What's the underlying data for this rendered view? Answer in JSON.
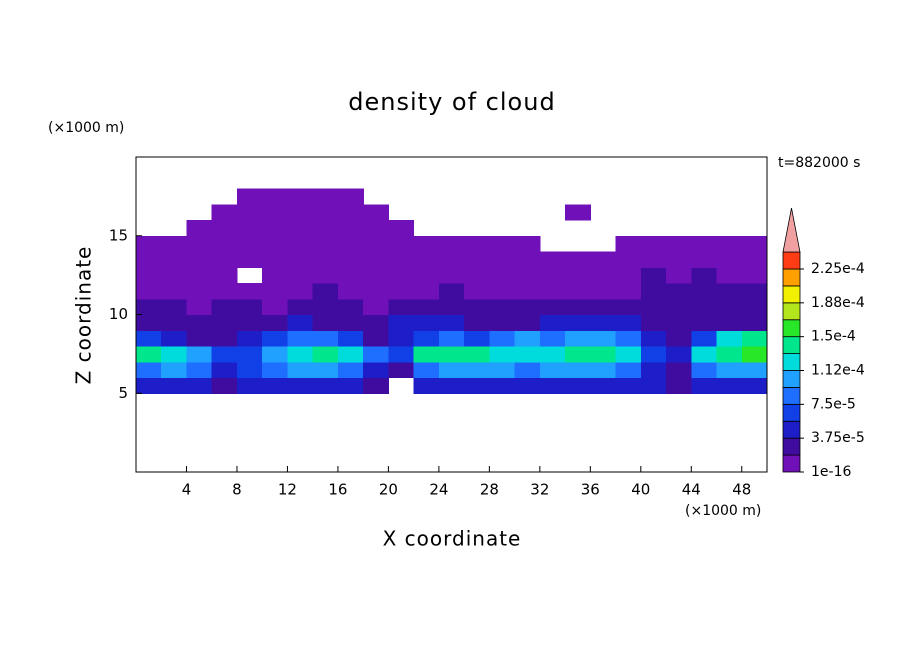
{
  "chart_data": {
    "type": "contour",
    "title": "density of cloud",
    "xlabel": "X coordinate",
    "ylabel": "Z coordinate",
    "x_unit": "(×1000 m)",
    "y_unit": "(×1000 m)",
    "time_label": "t=882000 s",
    "xlim": [
      0,
      50
    ],
    "ylim": [
      0,
      20
    ],
    "xticks": [
      4,
      8,
      12,
      16,
      20,
      24,
      28,
      32,
      36,
      40,
      44,
      48
    ],
    "yticks": [
      5,
      10,
      15
    ],
    "x": [
      1,
      3,
      5,
      7,
      9,
      11,
      13,
      15,
      17,
      19,
      21,
      23,
      25,
      27,
      29,
      31,
      33,
      35,
      37,
      39,
      41,
      43,
      45,
      47,
      49
    ],
    "y": [
      5.5,
      6.5,
      7.5,
      8.5,
      9.5,
      10.5,
      11.5,
      12.5,
      13.5,
      14.5,
      15.5,
      16.5,
      17.5
    ],
    "z": [
      [
        4.5e-05,
        4.5e-05,
        4.5e-05,
        2.5e-05,
        4.5e-05,
        4.5e-05,
        4.5e-05,
        4.5e-05,
        4.5e-05,
        2.5e-05,
        null,
        4.5e-05,
        4.5e-05,
        4.5e-05,
        4.5e-05,
        4.5e-05,
        4.5e-05,
        4.5e-05,
        4.5e-05,
        4.5e-05,
        4.5e-05,
        2.5e-05,
        4.5e-05,
        4.5e-05,
        4.5e-05
      ],
      [
        8.5e-05,
        0.0001,
        8.5e-05,
        4.5e-05,
        6.5e-05,
        8.5e-05,
        0.0001,
        0.0001,
        8.5e-05,
        4.5e-05,
        2.5e-05,
        8.5e-05,
        0.0001,
        0.0001,
        0.0001,
        8.5e-05,
        0.0001,
        0.0001,
        0.0001,
        8.5e-05,
        4.5e-05,
        2.5e-05,
        8.5e-05,
        0.0001,
        0.0001
      ],
      [
        0.00014,
        0.00012,
        0.0001,
        6.5e-05,
        6.5e-05,
        0.0001,
        0.00012,
        0.00014,
        0.00012,
        8.5e-05,
        6.5e-05,
        0.00014,
        0.00014,
        0.00014,
        0.00012,
        0.00012,
        0.00012,
        0.00014,
        0.00014,
        0.00012,
        6.5e-05,
        4.5e-05,
        0.00012,
        0.00014,
        0.00016
      ],
      [
        6.5e-05,
        4.5e-05,
        2.5e-05,
        2.5e-05,
        4.5e-05,
        6.5e-05,
        8.5e-05,
        8.5e-05,
        6.5e-05,
        2.5e-05,
        4.5e-05,
        6.5e-05,
        8.5e-05,
        6.5e-05,
        8.5e-05,
        0.0001,
        8.5e-05,
        0.0001,
        0.0001,
        8.5e-05,
        4.5e-05,
        2.5e-05,
        6.5e-05,
        0.00012,
        0.00014
      ],
      [
        2.5e-05,
        2.5e-05,
        2.5e-05,
        2.5e-05,
        2.5e-05,
        2.5e-05,
        4.5e-05,
        2.5e-05,
        2.5e-05,
        2.5e-05,
        4.5e-05,
        4.5e-05,
        4.5e-05,
        2.5e-05,
        2.5e-05,
        2.5e-05,
        4.5e-05,
        4.5e-05,
        4.5e-05,
        4.5e-05,
        2.5e-05,
        2.5e-05,
        2.5e-05,
        2.5e-05,
        2.5e-05
      ],
      [
        2.5e-05,
        2.5e-05,
        5e-06,
        2.5e-05,
        2.5e-05,
        5e-06,
        2.5e-05,
        2.5e-05,
        2.5e-05,
        5e-06,
        2.5e-05,
        2.5e-05,
        2.5e-05,
        2.5e-05,
        2.5e-05,
        2.5e-05,
        2.5e-05,
        2.5e-05,
        2.5e-05,
        2.5e-05,
        2.5e-05,
        2.5e-05,
        2.5e-05,
        2.5e-05,
        2.5e-05
      ],
      [
        5e-06,
        5e-06,
        5e-06,
        5e-06,
        5e-06,
        5e-06,
        5e-06,
        2.5e-05,
        5e-06,
        5e-06,
        5e-06,
        5e-06,
        2.5e-05,
        5e-06,
        5e-06,
        5e-06,
        5e-06,
        5e-06,
        5e-06,
        5e-06,
        2.5e-05,
        2.5e-05,
        2.5e-05,
        2.5e-05,
        2.5e-05
      ],
      [
        5e-06,
        5e-06,
        5e-06,
        5e-06,
        null,
        5e-06,
        5e-06,
        5e-06,
        5e-06,
        5e-06,
        5e-06,
        5e-06,
        5e-06,
        5e-06,
        5e-06,
        5e-06,
        5e-06,
        5e-06,
        5e-06,
        5e-06,
        2.5e-05,
        5e-06,
        2.5e-05,
        5e-06,
        5e-06
      ],
      [
        5e-06,
        5e-06,
        5e-06,
        5e-06,
        5e-06,
        5e-06,
        5e-06,
        5e-06,
        5e-06,
        5e-06,
        5e-06,
        5e-06,
        5e-06,
        5e-06,
        5e-06,
        5e-06,
        5e-06,
        5e-06,
        5e-06,
        5e-06,
        5e-06,
        5e-06,
        5e-06,
        5e-06,
        5e-06
      ],
      [
        5e-06,
        5e-06,
        5e-06,
        5e-06,
        5e-06,
        5e-06,
        5e-06,
        5e-06,
        5e-06,
        5e-06,
        5e-06,
        5e-06,
        5e-06,
        5e-06,
        5e-06,
        5e-06,
        null,
        null,
        null,
        5e-06,
        5e-06,
        5e-06,
        5e-06,
        5e-06,
        5e-06
      ],
      [
        null,
        null,
        5e-06,
        5e-06,
        5e-06,
        5e-06,
        5e-06,
        5e-06,
        5e-06,
        5e-06,
        5e-06,
        null,
        null,
        null,
        null,
        null,
        null,
        null,
        null,
        null,
        null,
        null,
        null,
        null,
        null
      ],
      [
        null,
        null,
        null,
        5e-06,
        5e-06,
        5e-06,
        5e-06,
        5e-06,
        5e-06,
        5e-06,
        null,
        null,
        null,
        null,
        null,
        null,
        null,
        5e-06,
        null,
        null,
        null,
        null,
        null,
        null,
        null
      ],
      [
        null,
        null,
        null,
        null,
        5e-06,
        5e-06,
        5e-06,
        5e-06,
        5e-06,
        null,
        null,
        null,
        null,
        null,
        null,
        null,
        null,
        null,
        null,
        null,
        null,
        null,
        null,
        null,
        null
      ]
    ],
    "levels": [
      1e-16,
      1.875e-05,
      3.75e-05,
      5.625e-05,
      7.5e-05,
      9.375e-05,
      0.0001125,
      0.00013125,
      0.00015,
      0.00016875,
      0.0001875,
      0.00020625,
      0.000225
    ],
    "colors": [
      "#7010b8",
      "#400ca0",
      "#1e1ec8",
      "#1040e6",
      "#1e6eff",
      "#20a0ff",
      "#00dcdc",
      "#00e68c",
      "#28e628",
      "#b4e61e",
      "#f0f000",
      "#ffa000",
      "#ff3c14"
    ],
    "over_color": "#f0a0a0",
    "cbar_ticks": [
      {
        "value": 1e-16,
        "label": "1e-16"
      },
      {
        "value": 3.75e-05,
        "label": "3.75e-5"
      },
      {
        "value": 7.5e-05,
        "label": "7.5e-5"
      },
      {
        "value": 0.0001125,
        "label": "1.12e-4"
      },
      {
        "value": 0.00015,
        "label": "1.5e-4"
      },
      {
        "value": 0.0001875,
        "label": "1.88e-4"
      },
      {
        "value": 0.000225,
        "label": "2.25e-4"
      }
    ]
  }
}
